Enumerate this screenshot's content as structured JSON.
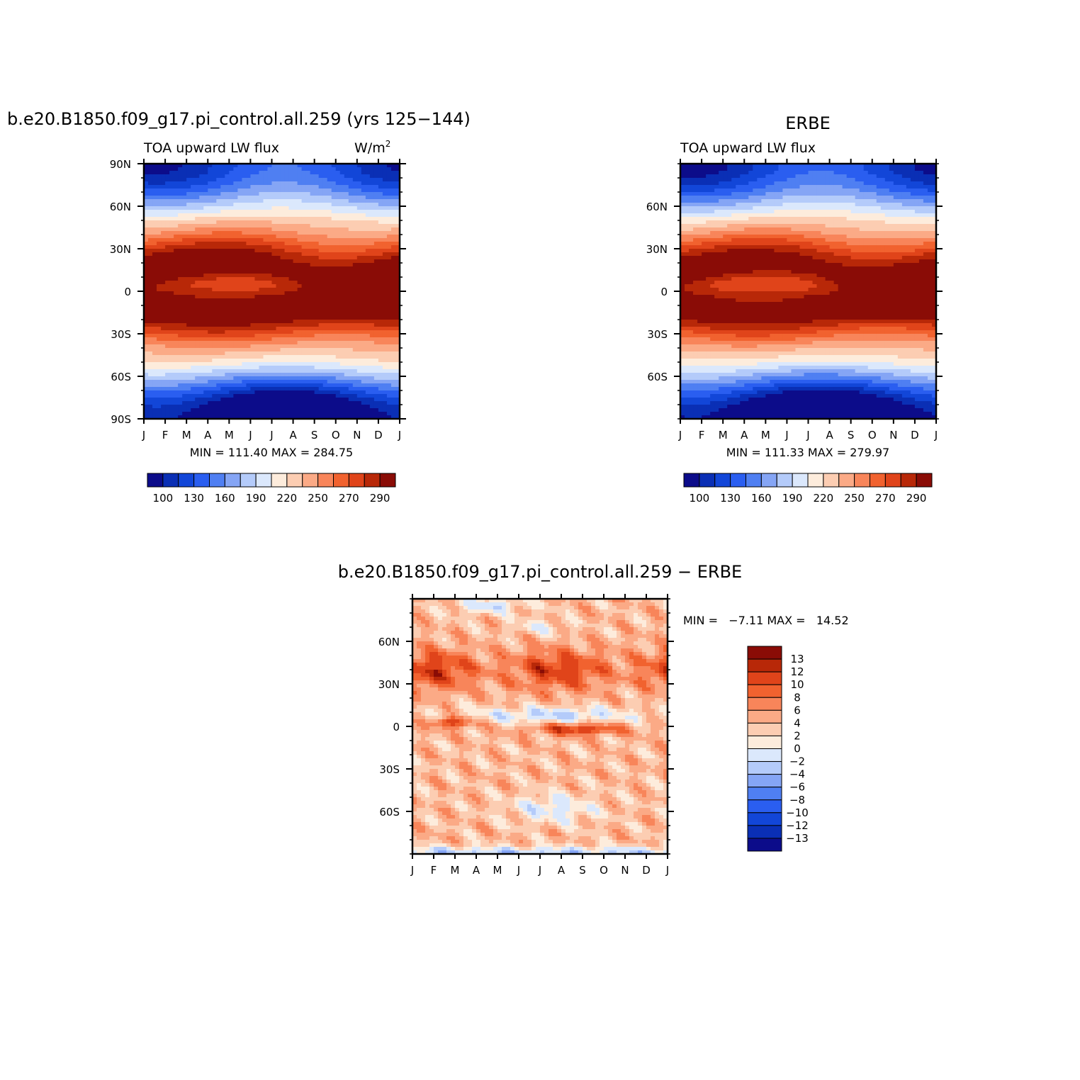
{
  "chart_data": [
    {
      "type": "heatmap",
      "id": "model",
      "title": "b.e20.B1850.f09_g17.pi_control.all.259 (yrs 125−144)",
      "subtitle_left": "TOA upward LW flux",
      "units": "W/m",
      "units_sup": "2",
      "x_ticks": [
        "J",
        "F",
        "M",
        "A",
        "M",
        "J",
        "J",
        "A",
        "S",
        "O",
        "N",
        "D",
        "J"
      ],
      "y_ticks": [
        "90N",
        "60N",
        "30N",
        "0",
        "30S",
        "60S",
        "90S"
      ],
      "y_tick_lats": [
        90,
        60,
        30,
        0,
        -30,
        -60,
        -90
      ],
      "ylim": [
        -90,
        90
      ],
      "stats": "MIN = 111.40 MAX = 284.75",
      "min": 111.4,
      "max": 284.75,
      "colorbar_levels": [
        100,
        110,
        120,
        130,
        140,
        150,
        160,
        170,
        180,
        190,
        200,
        210,
        220,
        230,
        240,
        250,
        260,
        270,
        280,
        290
      ],
      "colorbar_labels": [
        "100",
        "130",
        "160",
        "190",
        "220",
        "250",
        "270",
        "290"
      ]
    },
    {
      "type": "heatmap",
      "id": "obs",
      "title": "ERBE",
      "subtitle_left": "TOA upward LW flux",
      "x_ticks": [
        "J",
        "F",
        "M",
        "A",
        "M",
        "J",
        "J",
        "A",
        "S",
        "O",
        "N",
        "D",
        "J"
      ],
      "y_ticks": [
        "60N",
        "30N",
        "0",
        "30S",
        "60S"
      ],
      "y_tick_lats": [
        60,
        30,
        0,
        -30,
        -60
      ],
      "ylim": [
        -90,
        90
      ],
      "stats": "MIN = 111.33 MAX = 279.97",
      "min": 111.33,
      "max": 279.97,
      "colorbar_labels": [
        "100",
        "130",
        "160",
        "190",
        "220",
        "250",
        "270",
        "290"
      ]
    },
    {
      "type": "heatmap",
      "id": "diff",
      "title": "b.e20.B1850.f09_g17.pi_control.all.259 − ERBE",
      "x_ticks": [
        "J",
        "F",
        "M",
        "A",
        "M",
        "J",
        "J",
        "A",
        "S",
        "O",
        "N",
        "D",
        "J"
      ],
      "y_ticks": [
        "60N",
        "30N",
        "0",
        "30S",
        "60S"
      ],
      "y_tick_lats": [
        60,
        30,
        0,
        -30,
        -60
      ],
      "ylim": [
        -90,
        90
      ],
      "stats": "MIN =   −7.11 MAX =   14.52",
      "min": -7.11,
      "max": 14.52,
      "colorbar_levels": [
        -13,
        -12,
        -10,
        -8,
        -6,
        -4,
        -2,
        0,
        2,
        4,
        6,
        8,
        10,
        12,
        13
      ],
      "colorbar_labels": [
        "13",
        "12",
        "10",
        "8",
        "6",
        "4",
        "2",
        "0",
        "−2",
        "−4",
        "−6",
        "−8",
        "−10",
        "−12",
        "−13"
      ]
    }
  ],
  "colors": {
    "abs_palette": [
      "#0c0c8a",
      "#0a2fb5",
      "#1246d8",
      "#2a5ef0",
      "#4f7ff2",
      "#85a5f5",
      "#b4cbfa",
      "#dbe8fc",
      "#fdecdc",
      "#fccdb2",
      "#fbaa86",
      "#f8855a",
      "#f1622f",
      "#e0441a",
      "#b82808",
      "#8a0c06"
    ],
    "diff_palette": [
      "#0c0c8a",
      "#0a2fb5",
      "#1246d8",
      "#2a5ef0",
      "#4f7ff2",
      "#85a5f5",
      "#b4cbfa",
      "#dbe8fc",
      "#fdecdc",
      "#fccdb2",
      "#fbaa86",
      "#f8855a",
      "#f1622f",
      "#e0441a",
      "#b82808",
      "#8a0c06"
    ]
  }
}
